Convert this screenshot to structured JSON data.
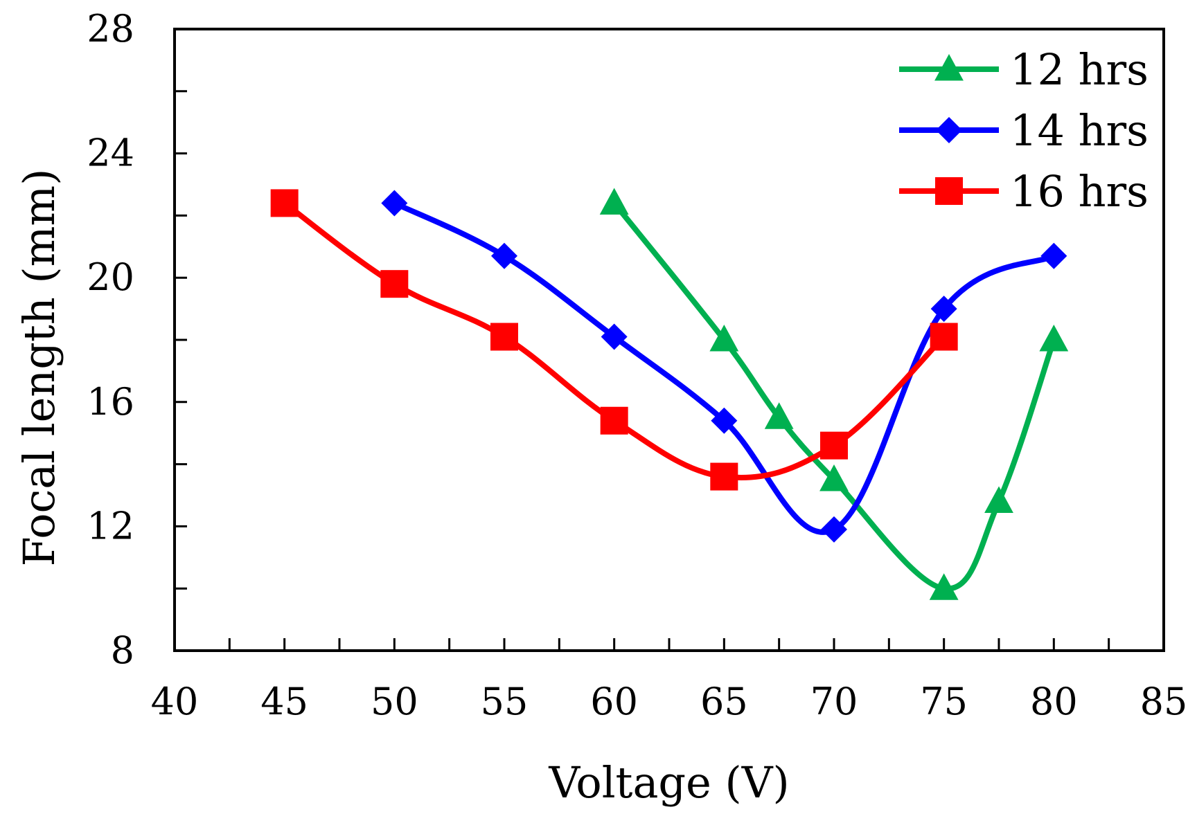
{
  "chart_data": {
    "type": "line",
    "title": "",
    "xlabel": "Voltage (V)",
    "ylabel": "Focal length (mm)",
    "xlim": [
      40,
      85
    ],
    "ylim": [
      8,
      28
    ],
    "x_major_ticks": [
      40,
      45,
      50,
      55,
      60,
      65,
      70,
      75,
      80,
      85
    ],
    "x_tick_labels": [
      "40",
      "45",
      "50",
      "55",
      "60",
      "65",
      "70",
      "75",
      "80",
      "85"
    ],
    "x_minor_ticks": [
      42.5,
      47.5,
      52.5,
      57.5,
      62.5,
      67.5,
      72.5,
      77.5,
      82.5
    ],
    "y_major_ticks": [
      8,
      12,
      16,
      20,
      24,
      28
    ],
    "y_tick_labels": [
      "8",
      "12",
      "16",
      "20",
      "24",
      "28"
    ],
    "y_minor_ticks": [
      10,
      14,
      18,
      22,
      26
    ],
    "grid": false,
    "legend_position": "top-right",
    "series": [
      {
        "name": "12 hrs",
        "color": "#00b050",
        "marker": "triangle",
        "x": [
          60,
          65,
          67.5,
          70,
          75,
          77.5,
          80
        ],
        "y": [
          22.4,
          18.0,
          15.5,
          13.5,
          10.0,
          12.8,
          18.0
        ]
      },
      {
        "name": "14 hrs",
        "color": "#0000ff",
        "marker": "diamond",
        "x": [
          50,
          55,
          60,
          65,
          70,
          75,
          80
        ],
        "y": [
          22.4,
          20.7,
          18.1,
          15.4,
          11.9,
          19.0,
          20.7
        ]
      },
      {
        "name": "16 hrs",
        "color": "#ff0000",
        "marker": "square",
        "x": [
          45,
          50,
          55,
          60,
          65,
          70,
          75
        ],
        "y": [
          22.4,
          19.8,
          18.1,
          15.4,
          13.6,
          14.6,
          18.1
        ]
      }
    ]
  }
}
